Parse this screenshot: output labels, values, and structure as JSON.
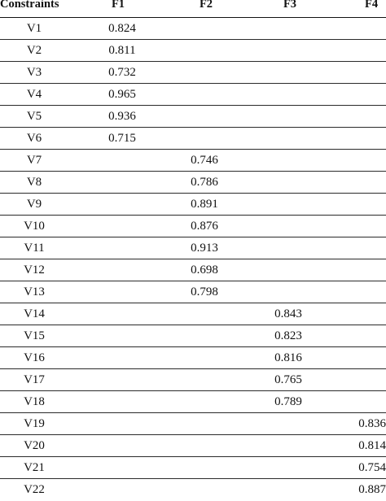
{
  "columns": [
    "Constraints",
    "F1",
    "F2",
    "F3",
    "F4"
  ],
  "rows": [
    {
      "name": "V1",
      "f1": "0.824",
      "f2": "",
      "f3": "",
      "f4": ""
    },
    {
      "name": "V2",
      "f1": "0.811",
      "f2": "",
      "f3": "",
      "f4": ""
    },
    {
      "name": "V3",
      "f1": "0.732",
      "f2": "",
      "f3": "",
      "f4": ""
    },
    {
      "name": "V4",
      "f1": "0.965",
      "f2": "",
      "f3": "",
      "f4": ""
    },
    {
      "name": "V5",
      "f1": "0.936",
      "f2": "",
      "f3": "",
      "f4": ""
    },
    {
      "name": "V6",
      "f1": "0.715",
      "f2": "",
      "f3": "",
      "f4": ""
    },
    {
      "name": "V7",
      "f1": "",
      "f2": "0.746",
      "f3": "",
      "f4": ""
    },
    {
      "name": "V8",
      "f1": "",
      "f2": "0.786",
      "f3": "",
      "f4": ""
    },
    {
      "name": "V9",
      "f1": "",
      "f2": "0.891",
      "f3": "",
      "f4": ""
    },
    {
      "name": "V10",
      "f1": "",
      "f2": "0.876",
      "f3": "",
      "f4": ""
    },
    {
      "name": "V11",
      "f1": "",
      "f2": "0.913",
      "f3": "",
      "f4": ""
    },
    {
      "name": "V12",
      "f1": "",
      "f2": "0.698",
      "f3": "",
      "f4": ""
    },
    {
      "name": "V13",
      "f1": "",
      "f2": "0.798",
      "f3": "",
      "f4": ""
    },
    {
      "name": "V14",
      "f1": "",
      "f2": "",
      "f3": "0.843",
      "f4": ""
    },
    {
      "name": "V15",
      "f1": "",
      "f2": "",
      "f3": "0.823",
      "f4": ""
    },
    {
      "name": "V16",
      "f1": "",
      "f2": "",
      "f3": "0.816",
      "f4": ""
    },
    {
      "name": "V17",
      "f1": "",
      "f2": "",
      "f3": "0.765",
      "f4": ""
    },
    {
      "name": "V18",
      "f1": "",
      "f2": "",
      "f3": "0.789",
      "f4": ""
    },
    {
      "name": "V19",
      "f1": "",
      "f2": "",
      "f3": "",
      "f4": "0.836"
    },
    {
      "name": "V20",
      "f1": "",
      "f2": "",
      "f3": "",
      "f4": "0.814"
    },
    {
      "name": "V21",
      "f1": "",
      "f2": "",
      "f3": "",
      "f4": "0.754"
    },
    {
      "name": "V22",
      "f1": "",
      "f2": "",
      "f3": "",
      "f4": "0.887"
    }
  ]
}
